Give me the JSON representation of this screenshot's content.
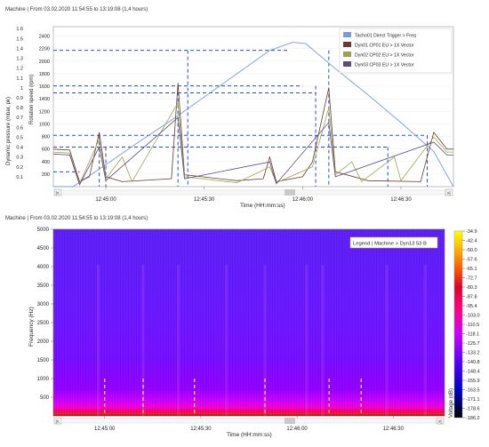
{
  "top_panel": {
    "header": "Machine | From 03.02.2020 11:54:55 to 13:19:08 (1,4 hours)",
    "scroll_left": "|<",
    "scroll_right": ">|"
  },
  "bottom_panel": {
    "header": "Machine | From 03.02.2020 11:54:55 to 13:19:08 (1,4 hours)",
    "scroll_left": "|<",
    "scroll_right": ">|"
  },
  "colors": {
    "tacho": "#7b9bd8",
    "dyn01": "#6b3a2c",
    "dyn02": "#9aa44a",
    "dyn03": "#5a4a86",
    "guide": "#2451c7",
    "marker": "#f2d24a"
  },
  "chart_data": [
    {
      "type": "line",
      "x_unit": "time",
      "xlabel": "Time (HH:mm:ss)",
      "x_ticks": [
        "12:45:00",
        "12:45:30",
        "12:46:00",
        "12:46:30"
      ],
      "xlim": [
        "12:44:44",
        "12:46:46"
      ],
      "y_left": {
        "label": "Dynamic pressure (mbar, pk)",
        "ticks": [
          "0.1",
          "0.2",
          "0.3",
          "0.4",
          "0.5",
          "0.6",
          "0.7",
          "0.8",
          "0.9",
          "1",
          "1.1",
          "1.2",
          "1.3",
          "1.4",
          "1.5",
          "1.6"
        ],
        "lim": [
          0,
          1.62
        ]
      },
      "y_right": {
        "label": "Rotation speed (rpm)",
        "ticks": [
          "200",
          "400",
          "600",
          "800",
          "1000",
          "1200",
          "1400",
          "1600",
          "1800",
          "2000",
          "2200",
          "2400"
        ],
        "lim": [
          0,
          2550
        ]
      },
      "legend": [
        "Tacho01 Direct Trigger > Freq",
        "Dyn01 CP01 EU > 1X Vector",
        "Dyn02 CP02 EU > 1X Vector",
        "Dyn03 CP03 EU > 1X Vector"
      ],
      "legend_position": "top-right",
      "series": [
        {
          "name": "Tacho01 Direct Trigger > Freq",
          "axis": "right",
          "points": [
            [
              "12:44:44",
              0
            ],
            [
              "12:44:50",
              0
            ],
            [
              "12:45:00",
              350
            ],
            [
              "12:45:10",
              710
            ],
            [
              "12:45:20",
              1060
            ],
            [
              "12:45:30",
              1430
            ],
            [
              "12:45:40",
              1800
            ],
            [
              "12:45:50",
              2170
            ],
            [
              "12:45:57",
              2300
            ],
            [
              "12:46:01",
              2280
            ],
            [
              "12:46:10",
              1880
            ],
            [
              "12:46:20",
              1460
            ],
            [
              "12:46:30",
              1020
            ],
            [
              "12:46:40",
              560
            ],
            [
              "12:46:46",
              0
            ]
          ]
        },
        {
          "name": "Dyn01 CP01 EU > 1X Vector",
          "axis": "left",
          "points": [
            [
              "12:44:44",
              0.38
            ],
            [
              "12:44:49",
              0.37
            ],
            [
              "12:44:52",
              0.05
            ],
            [
              "12:44:55",
              0.1
            ],
            [
              "12:44:58",
              0.55
            ],
            [
              "12:45:00",
              0.1
            ],
            [
              "12:45:05",
              0.05
            ],
            [
              "12:45:20",
              0.08
            ],
            [
              "12:45:22",
              1.05
            ],
            [
              "12:45:24",
              0.12
            ],
            [
              "12:45:40",
              0.06
            ],
            [
              "12:45:48",
              0.08
            ],
            [
              "12:45:50",
              0.3
            ],
            [
              "12:45:52",
              0.05
            ],
            [
              "12:46:00",
              0.1
            ],
            [
              "12:46:03",
              0.25
            ],
            [
              "12:46:08",
              1.0
            ],
            [
              "12:46:10",
              0.15
            ],
            [
              "12:46:20",
              0.06
            ],
            [
              "12:46:36",
              0.05
            ],
            [
              "12:46:40",
              0.55
            ],
            [
              "12:46:44",
              0.38
            ],
            [
              "12:46:46",
              0.38
            ]
          ]
        },
        {
          "name": "Dyn02 CP02 EU > 1X Vector",
          "axis": "left",
          "points": [
            [
              "12:44:44",
              0.35
            ],
            [
              "12:44:49",
              0.34
            ],
            [
              "12:44:52",
              0.03
            ],
            [
              "12:44:58",
              0.48
            ],
            [
              "12:45:00",
              0.08
            ],
            [
              "12:45:05",
              0.3
            ],
            [
              "12:45:08",
              0.05
            ],
            [
              "12:45:22",
              0.85
            ],
            [
              "12:45:24",
              0.1
            ],
            [
              "12:45:40",
              0.04
            ],
            [
              "12:45:50",
              0.2
            ],
            [
              "12:45:52",
              0.04
            ],
            [
              "12:46:03",
              0.2
            ],
            [
              "12:46:08",
              0.8
            ],
            [
              "12:46:10",
              0.12
            ],
            [
              "12:46:15",
              0.25
            ],
            [
              "12:46:18",
              0.05
            ],
            [
              "12:46:28",
              0.3
            ],
            [
              "12:46:30",
              0.06
            ],
            [
              "12:46:40",
              0.5
            ],
            [
              "12:46:44",
              0.35
            ],
            [
              "12:46:46",
              0.35
            ]
          ]
        },
        {
          "name": "Dyn03 CP03 EU > 1X Vector",
          "axis": "left",
          "points": [
            [
              "12:44:44",
              0.33
            ],
            [
              "12:44:49",
              0.32
            ],
            [
              "12:44:52",
              0.02
            ],
            [
              "12:44:58",
              0.4
            ],
            [
              "12:45:00",
              0.06
            ],
            [
              "12:45:22",
              0.7
            ],
            [
              "12:45:24",
              0.08
            ],
            [
              "12:45:50",
              0.25
            ],
            [
              "12:45:52",
              0.03
            ],
            [
              "12:46:08",
              0.65
            ],
            [
              "12:46:10",
              0.1
            ],
            [
              "12:46:40",
              0.45
            ],
            [
              "12:46:44",
              0.32
            ],
            [
              "12:46:46",
              0.32
            ]
          ]
        }
      ]
    },
    {
      "type": "heatmap",
      "xlabel": "Time (HH:mm:ss)",
      "x_ticks": [
        "12:45:00",
        "12:45:30",
        "12:46:00",
        "12:46:30"
      ],
      "xlim": [
        "12:44:44",
        "12:46:46"
      ],
      "ylabel": "Frequency (Hz)",
      "y_ticks": [
        "500",
        "1000",
        "1500",
        "2000",
        "2500",
        "3000",
        "3500",
        "4000",
        "4500",
        "5000"
      ],
      "ylim": [
        0,
        5000
      ],
      "legend": "Legend | Machine > Dyn13 53 B",
      "legend_position": "top-right",
      "colorbar": {
        "label": "Voltage (dB)",
        "ticks": [
          "-34.9",
          "-42.4",
          "-50.0",
          "-57.6",
          "-65.1",
          "-72.7",
          "-80.3",
          "-87.8",
          "-95.4",
          "-103.0",
          "-110.5",
          "-118.1",
          "-125.7",
          "-133.2",
          "-140.8",
          "-148.4",
          "-155.9",
          "-163.5",
          "-171.1",
          "-178.6",
          "-186.2"
        ],
        "range": [
          -186.2,
          -34.9
        ],
        "colors": [
          "#ffff00",
          "#ffb000",
          "#ff5a00",
          "#e0002a",
          "#ff0080",
          "#cc00ff",
          "#5500ff",
          "#0000cc",
          "#000000"
        ]
      },
      "marker_times": [
        "12:45:00",
        "12:45:12",
        "12:45:28",
        "12:45:50",
        "12:46:10",
        "12:46:20"
      ]
    }
  ]
}
